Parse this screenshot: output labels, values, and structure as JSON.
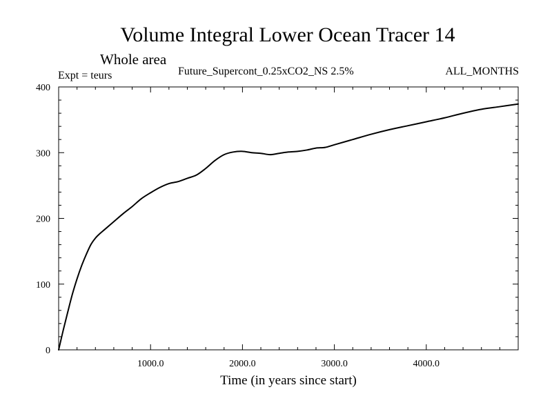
{
  "chart_data": {
    "type": "line",
    "title": "Volume Integral Lower Ocean Tracer 14",
    "subtitle": "Whole area",
    "expt_label": "Expt = teurs",
    "run_label": "Future_Supercont_0.25xCO2_NS 2.5%",
    "period_label": "ALL_MONTHS",
    "xlabel": "Time (in years since start)",
    "ylabel": "",
    "xlim": [
      0,
      5000
    ],
    "ylim": [
      0,
      400
    ],
    "x_tick_labels": [
      {
        "value": 1000,
        "label": "1000.0"
      },
      {
        "value": 2000,
        "label": "2000.0"
      },
      {
        "value": 3000,
        "label": "3000.0"
      },
      {
        "value": 4000,
        "label": "4000.0"
      }
    ],
    "y_tick_labels": [
      {
        "value": 0,
        "label": "0"
      },
      {
        "value": 100,
        "label": "100"
      },
      {
        "value": 200,
        "label": "200"
      },
      {
        "value": 300,
        "label": "300"
      },
      {
        "value": 400,
        "label": "400"
      }
    ],
    "x_minor_step": 200,
    "y_minor_step": 20,
    "grid": false,
    "legend": "none",
    "line_color": "#000000",
    "series": [
      {
        "x": [
          0,
          50,
          100,
          150,
          200,
          250,
          300,
          350,
          400,
          450,
          500,
          600,
          700,
          800,
          900,
          1000,
          1100,
          1200,
          1300,
          1400,
          1500,
          1600,
          1700,
          1800,
          1900,
          2000,
          2100,
          2200,
          2300,
          2400,
          2500,
          2600,
          2700,
          2800,
          2900,
          3000,
          3200,
          3400,
          3600,
          3800,
          4000,
          4200,
          4400,
          4600,
          4800,
          5000
        ],
        "y": [
          0,
          30,
          58,
          85,
          108,
          128,
          145,
          160,
          170,
          177,
          183,
          195,
          207,
          218,
          230,
          239,
          247,
          253,
          256,
          261,
          266,
          276,
          288,
          297,
          301,
          302,
          300,
          299,
          297,
          299,
          301,
          302,
          304,
          307,
          308,
          312,
          320,
          328,
          335,
          341,
          347,
          353,
          360,
          366,
          370,
          374
        ]
      }
    ]
  }
}
